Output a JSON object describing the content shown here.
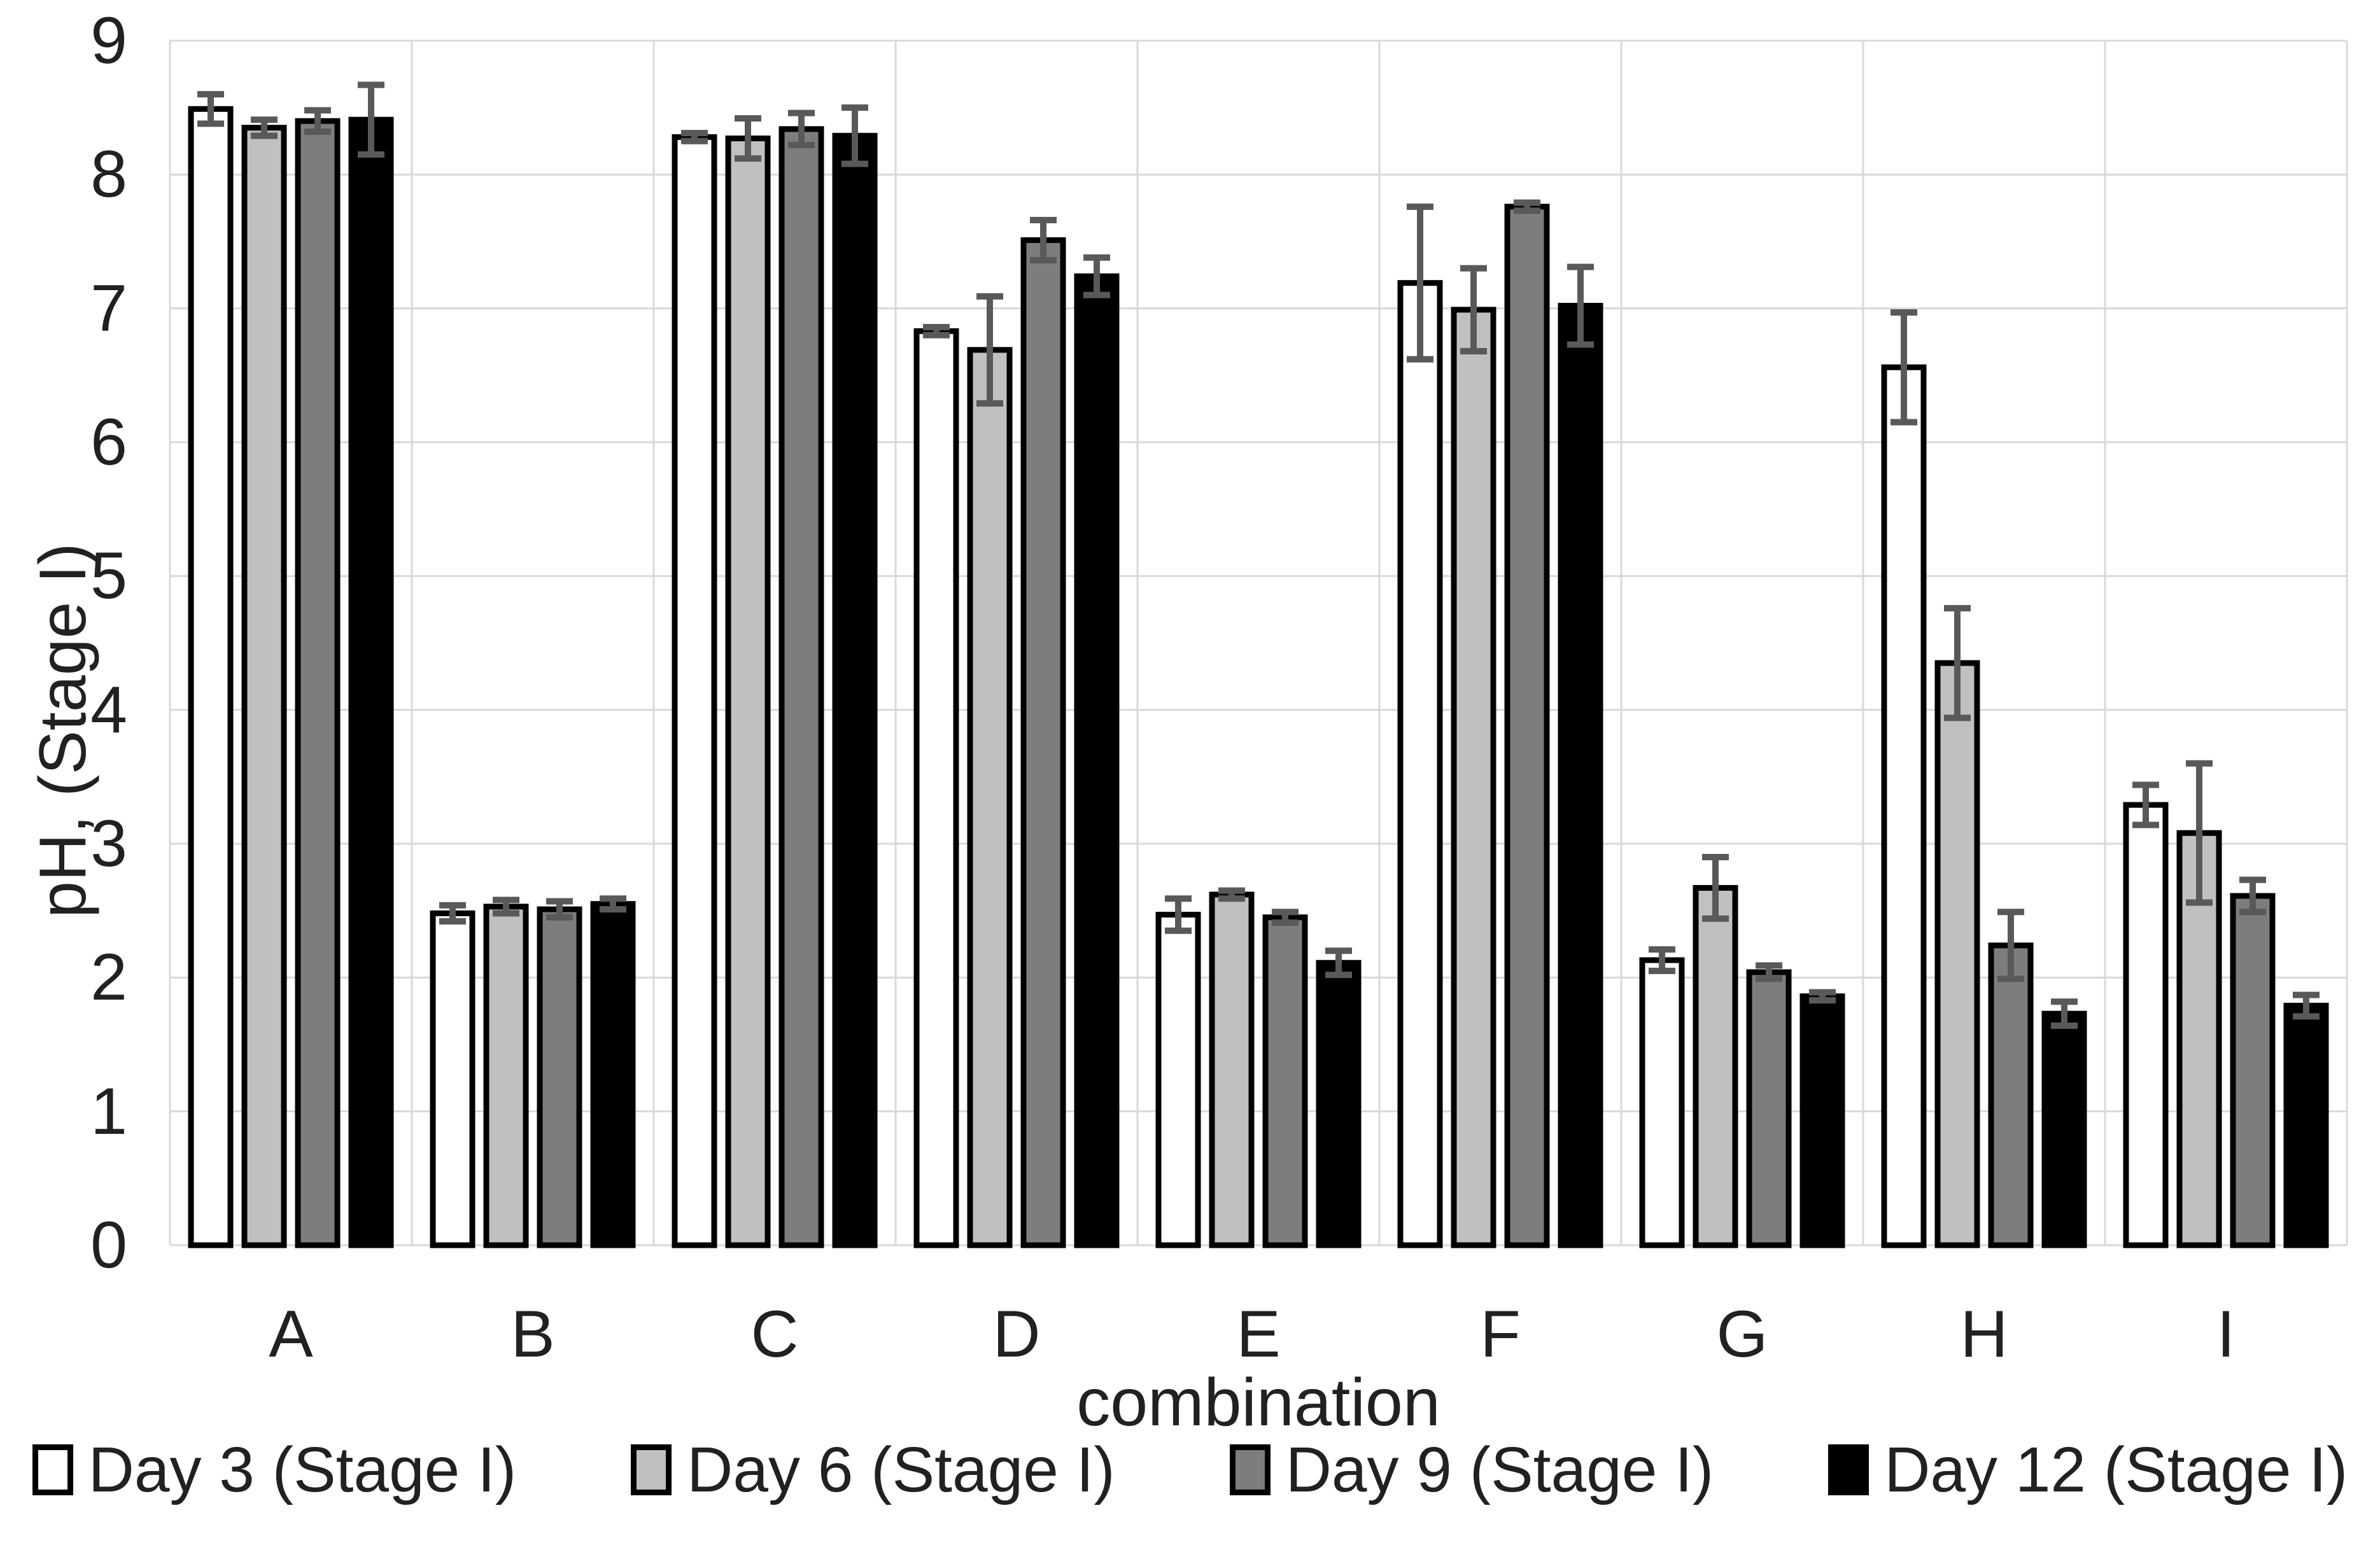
{
  "chart_data": {
    "type": "bar",
    "title": "",
    "xlabel": "combination",
    "ylabel": "pH, (Stage I)",
    "ylim": [
      0,
      9
    ],
    "y_ticks": [
      0,
      1,
      2,
      3,
      4,
      5,
      6,
      7,
      8,
      9
    ],
    "grid": true,
    "legend_position": "bottom",
    "error_bars": true,
    "categories": [
      "A",
      "B",
      "C",
      "D",
      "E",
      "F",
      "G",
      "H",
      "I"
    ],
    "series": [
      {
        "name": "Day 3 (Stage I)",
        "values": [
          8.49,
          2.48,
          8.28,
          6.83,
          2.47,
          7.19,
          2.13,
          6.56,
          3.29
        ],
        "errors": [
          0.11,
          0.06,
          0.03,
          0.03,
          0.12,
          0.57,
          0.08,
          0.41,
          0.15
        ]
      },
      {
        "name": "Day 6 (Stage I)",
        "values": [
          8.35,
          2.53,
          8.27,
          6.69,
          2.62,
          6.99,
          2.67,
          4.35,
          3.08
        ],
        "errors": [
          0.06,
          0.05,
          0.15,
          0.4,
          0.03,
          0.31,
          0.23,
          0.41,
          0.52
        ]
      },
      {
        "name": "Day 9 (Stage I)",
        "values": [
          8.4,
          2.51,
          8.34,
          7.51,
          2.45,
          7.76,
          2.04,
          2.24,
          2.61
        ],
        "errors": [
          0.08,
          0.06,
          0.12,
          0.15,
          0.04,
          0.03,
          0.05,
          0.25,
          0.12
        ]
      },
      {
        "name": "Day 12 (Stage I)",
        "values": [
          8.41,
          2.55,
          8.29,
          7.24,
          2.11,
          7.02,
          1.86,
          1.73,
          1.79
        ],
        "errors": [
          0.26,
          0.04,
          0.21,
          0.14,
          0.09,
          0.29,
          0.03,
          0.09,
          0.08
        ]
      }
    ]
  },
  "colors": {
    "background": "#ffffff",
    "series_fills": [
      "#ffffff",
      "#c0c0c0",
      "#7d7d7d",
      "#000000"
    ],
    "bar_outline": "#000000",
    "error_bar": "#595959",
    "gridline": "#d9d9d9",
    "text": "#212121"
  }
}
